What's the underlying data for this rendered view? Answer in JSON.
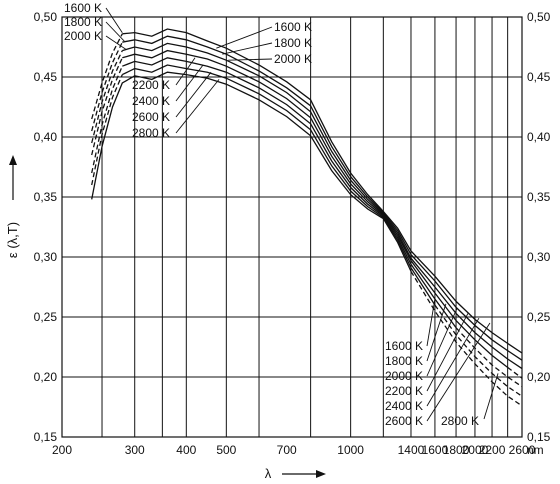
{
  "chart_data": {
    "type": "line",
    "title": "",
    "xlabel": "λ",
    "ylabel": "ε (λ,T)",
    "x_unit": "nm",
    "x_scale": "log",
    "xlim": [
      200,
      2600
    ],
    "ylim": [
      0.15,
      0.5
    ],
    "grid": true,
    "x_ticks": [
      200,
      300,
      400,
      500,
      700,
      1000,
      1400,
      1600,
      1800,
      2000,
      2200,
      2600
    ],
    "x_grid_lines": [
      250,
      300,
      350,
      400,
      500,
      600,
      800,
      1000,
      1200,
      1400,
      1600,
      1800,
      2000,
      2200,
      2400,
      2600
    ],
    "y_ticks": [
      "0,15",
      "0,20",
      "0,25",
      "0,30",
      "0,35",
      "0,40",
      "0,45",
      "0,50"
    ],
    "y_tick_values": [
      0.15,
      0.2,
      0.25,
      0.3,
      0.35,
      0.4,
      0.45,
      0.5
    ],
    "x_tick_labels": [
      "200",
      "300",
      "400",
      "500",
      "700",
      "1000",
      "1400",
      "1600",
      "1800",
      "2000",
      "2200",
      "2600"
    ],
    "x_unit_label": "nm",
    "series": [
      {
        "name": "1600 K",
        "dashed_below": 280,
        "points": [
          [
            236,
            0.415
          ],
          [
            250,
            0.445
          ],
          [
            265,
            0.47
          ],
          [
            280,
            0.486
          ],
          [
            300,
            0.487
          ],
          [
            330,
            0.484
          ],
          [
            360,
            0.49
          ],
          [
            400,
            0.487
          ],
          [
            450,
            0.48
          ],
          [
            500,
            0.474
          ],
          [
            600,
            0.46
          ],
          [
            700,
            0.446
          ],
          [
            800,
            0.431
          ],
          [
            900,
            0.396
          ],
          [
            1000,
            0.37
          ],
          [
            1100,
            0.352
          ],
          [
            1200,
            0.338
          ],
          [
            1300,
            0.324
          ],
          [
            1400,
            0.305
          ],
          [
            1600,
            0.284
          ],
          [
            1800,
            0.263
          ],
          [
            2000,
            0.248
          ],
          [
            2200,
            0.237
          ],
          [
            2400,
            0.228
          ],
          [
            2600,
            0.22
          ]
        ]
      },
      {
        "name": "1800 K",
        "dashed_below": 280,
        "points": [
          [
            236,
            0.405
          ],
          [
            250,
            0.437
          ],
          [
            265,
            0.462
          ],
          [
            280,
            0.479
          ],
          [
            300,
            0.481
          ],
          [
            330,
            0.478
          ],
          [
            360,
            0.484
          ],
          [
            400,
            0.481
          ],
          [
            450,
            0.475
          ],
          [
            500,
            0.469
          ],
          [
            600,
            0.455
          ],
          [
            700,
            0.441
          ],
          [
            800,
            0.426
          ],
          [
            900,
            0.392
          ],
          [
            1000,
            0.367
          ],
          [
            1100,
            0.35
          ],
          [
            1200,
            0.337
          ],
          [
            1300,
            0.322
          ],
          [
            1400,
            0.302
          ],
          [
            1600,
            0.28
          ],
          [
            1800,
            0.258
          ],
          [
            2000,
            0.243
          ],
          [
            2200,
            0.231
          ],
          [
            2400,
            0.222
          ],
          [
            2600,
            0.214
          ]
        ]
      },
      {
        "name": "2000 K",
        "dashed_below": 280,
        "points": [
          [
            236,
            0.395
          ],
          [
            250,
            0.429
          ],
          [
            265,
            0.455
          ],
          [
            280,
            0.472
          ],
          [
            300,
            0.475
          ],
          [
            330,
            0.472
          ],
          [
            360,
            0.478
          ],
          [
            400,
            0.475
          ],
          [
            450,
            0.47
          ],
          [
            500,
            0.464
          ],
          [
            600,
            0.451
          ],
          [
            700,
            0.437
          ],
          [
            800,
            0.421
          ],
          [
            900,
            0.388
          ],
          [
            1000,
            0.364
          ],
          [
            1100,
            0.348
          ],
          [
            1200,
            0.336
          ],
          [
            1300,
            0.32
          ],
          [
            1400,
            0.299
          ],
          [
            1600,
            0.275
          ],
          [
            1800,
            0.253
          ],
          [
            2000,
            0.237
          ],
          [
            2200,
            0.225
          ],
          [
            2400,
            0.215
          ],
          [
            2600,
            0.207
          ]
        ]
      },
      {
        "name": "2200 K",
        "dashed_below": 280,
        "dashed_above": 2400,
        "points": [
          [
            236,
            0.385
          ],
          [
            250,
            0.421
          ],
          [
            265,
            0.448
          ],
          [
            280,
            0.466
          ],
          [
            300,
            0.469
          ],
          [
            330,
            0.466
          ],
          [
            360,
            0.472
          ],
          [
            400,
            0.469
          ],
          [
            450,
            0.465
          ],
          [
            500,
            0.459
          ],
          [
            600,
            0.446
          ],
          [
            700,
            0.432
          ],
          [
            800,
            0.416
          ],
          [
            900,
            0.384
          ],
          [
            1000,
            0.361
          ],
          [
            1100,
            0.346
          ],
          [
            1200,
            0.335
          ],
          [
            1300,
            0.318
          ],
          [
            1400,
            0.297
          ],
          [
            1600,
            0.27
          ],
          [
            1800,
            0.247
          ],
          [
            2000,
            0.231
          ],
          [
            2200,
            0.218
          ],
          [
            2400,
            0.208
          ],
          [
            2600,
            0.199
          ]
        ]
      },
      {
        "name": "2400 K",
        "dashed_below": 280,
        "dashed_above": 1800,
        "points": [
          [
            236,
            0.37
          ],
          [
            250,
            0.41
          ],
          [
            265,
            0.44
          ],
          [
            280,
            0.459
          ],
          [
            300,
            0.463
          ],
          [
            330,
            0.46
          ],
          [
            360,
            0.466
          ],
          [
            400,
            0.463
          ],
          [
            450,
            0.459
          ],
          [
            500,
            0.454
          ],
          [
            600,
            0.441
          ],
          [
            700,
            0.427
          ],
          [
            800,
            0.411
          ],
          [
            900,
            0.38
          ],
          [
            1000,
            0.358
          ],
          [
            1100,
            0.344
          ],
          [
            1200,
            0.334
          ],
          [
            1300,
            0.316
          ],
          [
            1400,
            0.294
          ],
          [
            1600,
            0.265
          ],
          [
            1800,
            0.241
          ],
          [
            2000,
            0.224
          ],
          [
            2200,
            0.21
          ],
          [
            2400,
            0.2
          ],
          [
            2600,
            0.192
          ]
        ]
      },
      {
        "name": "2600 K",
        "dashed_below": 280,
        "dashed_above": 1600,
        "points": [
          [
            236,
            0.36
          ],
          [
            250,
            0.402
          ],
          [
            265,
            0.433
          ],
          [
            280,
            0.452
          ],
          [
            300,
            0.457
          ],
          [
            330,
            0.454
          ],
          [
            360,
            0.46
          ],
          [
            400,
            0.457
          ],
          [
            450,
            0.454
          ],
          [
            500,
            0.449
          ],
          [
            600,
            0.436
          ],
          [
            700,
            0.422
          ],
          [
            800,
            0.406
          ],
          [
            900,
            0.376
          ],
          [
            1000,
            0.355
          ],
          [
            1100,
            0.342
          ],
          [
            1200,
            0.333
          ],
          [
            1300,
            0.314
          ],
          [
            1400,
            0.291
          ],
          [
            1600,
            0.26
          ],
          [
            1800,
            0.235
          ],
          [
            2000,
            0.217
          ],
          [
            2200,
            0.203
          ],
          [
            2400,
            0.192
          ],
          [
            2600,
            0.184
          ]
        ]
      },
      {
        "name": "2800 K",
        "dashed_below": 0,
        "dashed_above": 1400,
        "points": [
          [
            236,
            0.348
          ],
          [
            250,
            0.392
          ],
          [
            265,
            0.425
          ],
          [
            280,
            0.445
          ],
          [
            300,
            0.451
          ],
          [
            330,
            0.448
          ],
          [
            360,
            0.454
          ],
          [
            400,
            0.452
          ],
          [
            450,
            0.449
          ],
          [
            500,
            0.444
          ],
          [
            600,
            0.431
          ],
          [
            700,
            0.417
          ],
          [
            800,
            0.401
          ],
          [
            900,
            0.372
          ],
          [
            1000,
            0.352
          ],
          [
            1100,
            0.34
          ],
          [
            1200,
            0.332
          ],
          [
            1300,
            0.312
          ],
          [
            1400,
            0.288
          ],
          [
            1600,
            0.255
          ],
          [
            1800,
            0.229
          ],
          [
            2000,
            0.211
          ],
          [
            2200,
            0.196
          ],
          [
            2400,
            0.184
          ],
          [
            2600,
            0.176
          ]
        ]
      }
    ],
    "annotations": {
      "top_left": [
        "1600 K",
        "1800 K",
        "2000 K"
      ],
      "top_right": [
        "1600 K",
        "1800 K",
        "2000 K"
      ],
      "mid_left": [
        "2200 K",
        "2400 K",
        "2600 K",
        "2800 K"
      ],
      "bottom_right": [
        "1600 K",
        "1800 K",
        "2000 K",
        "2200 K",
        "2400 K",
        "2600 K"
      ],
      "bottom_right_extra": "2800 K"
    }
  }
}
